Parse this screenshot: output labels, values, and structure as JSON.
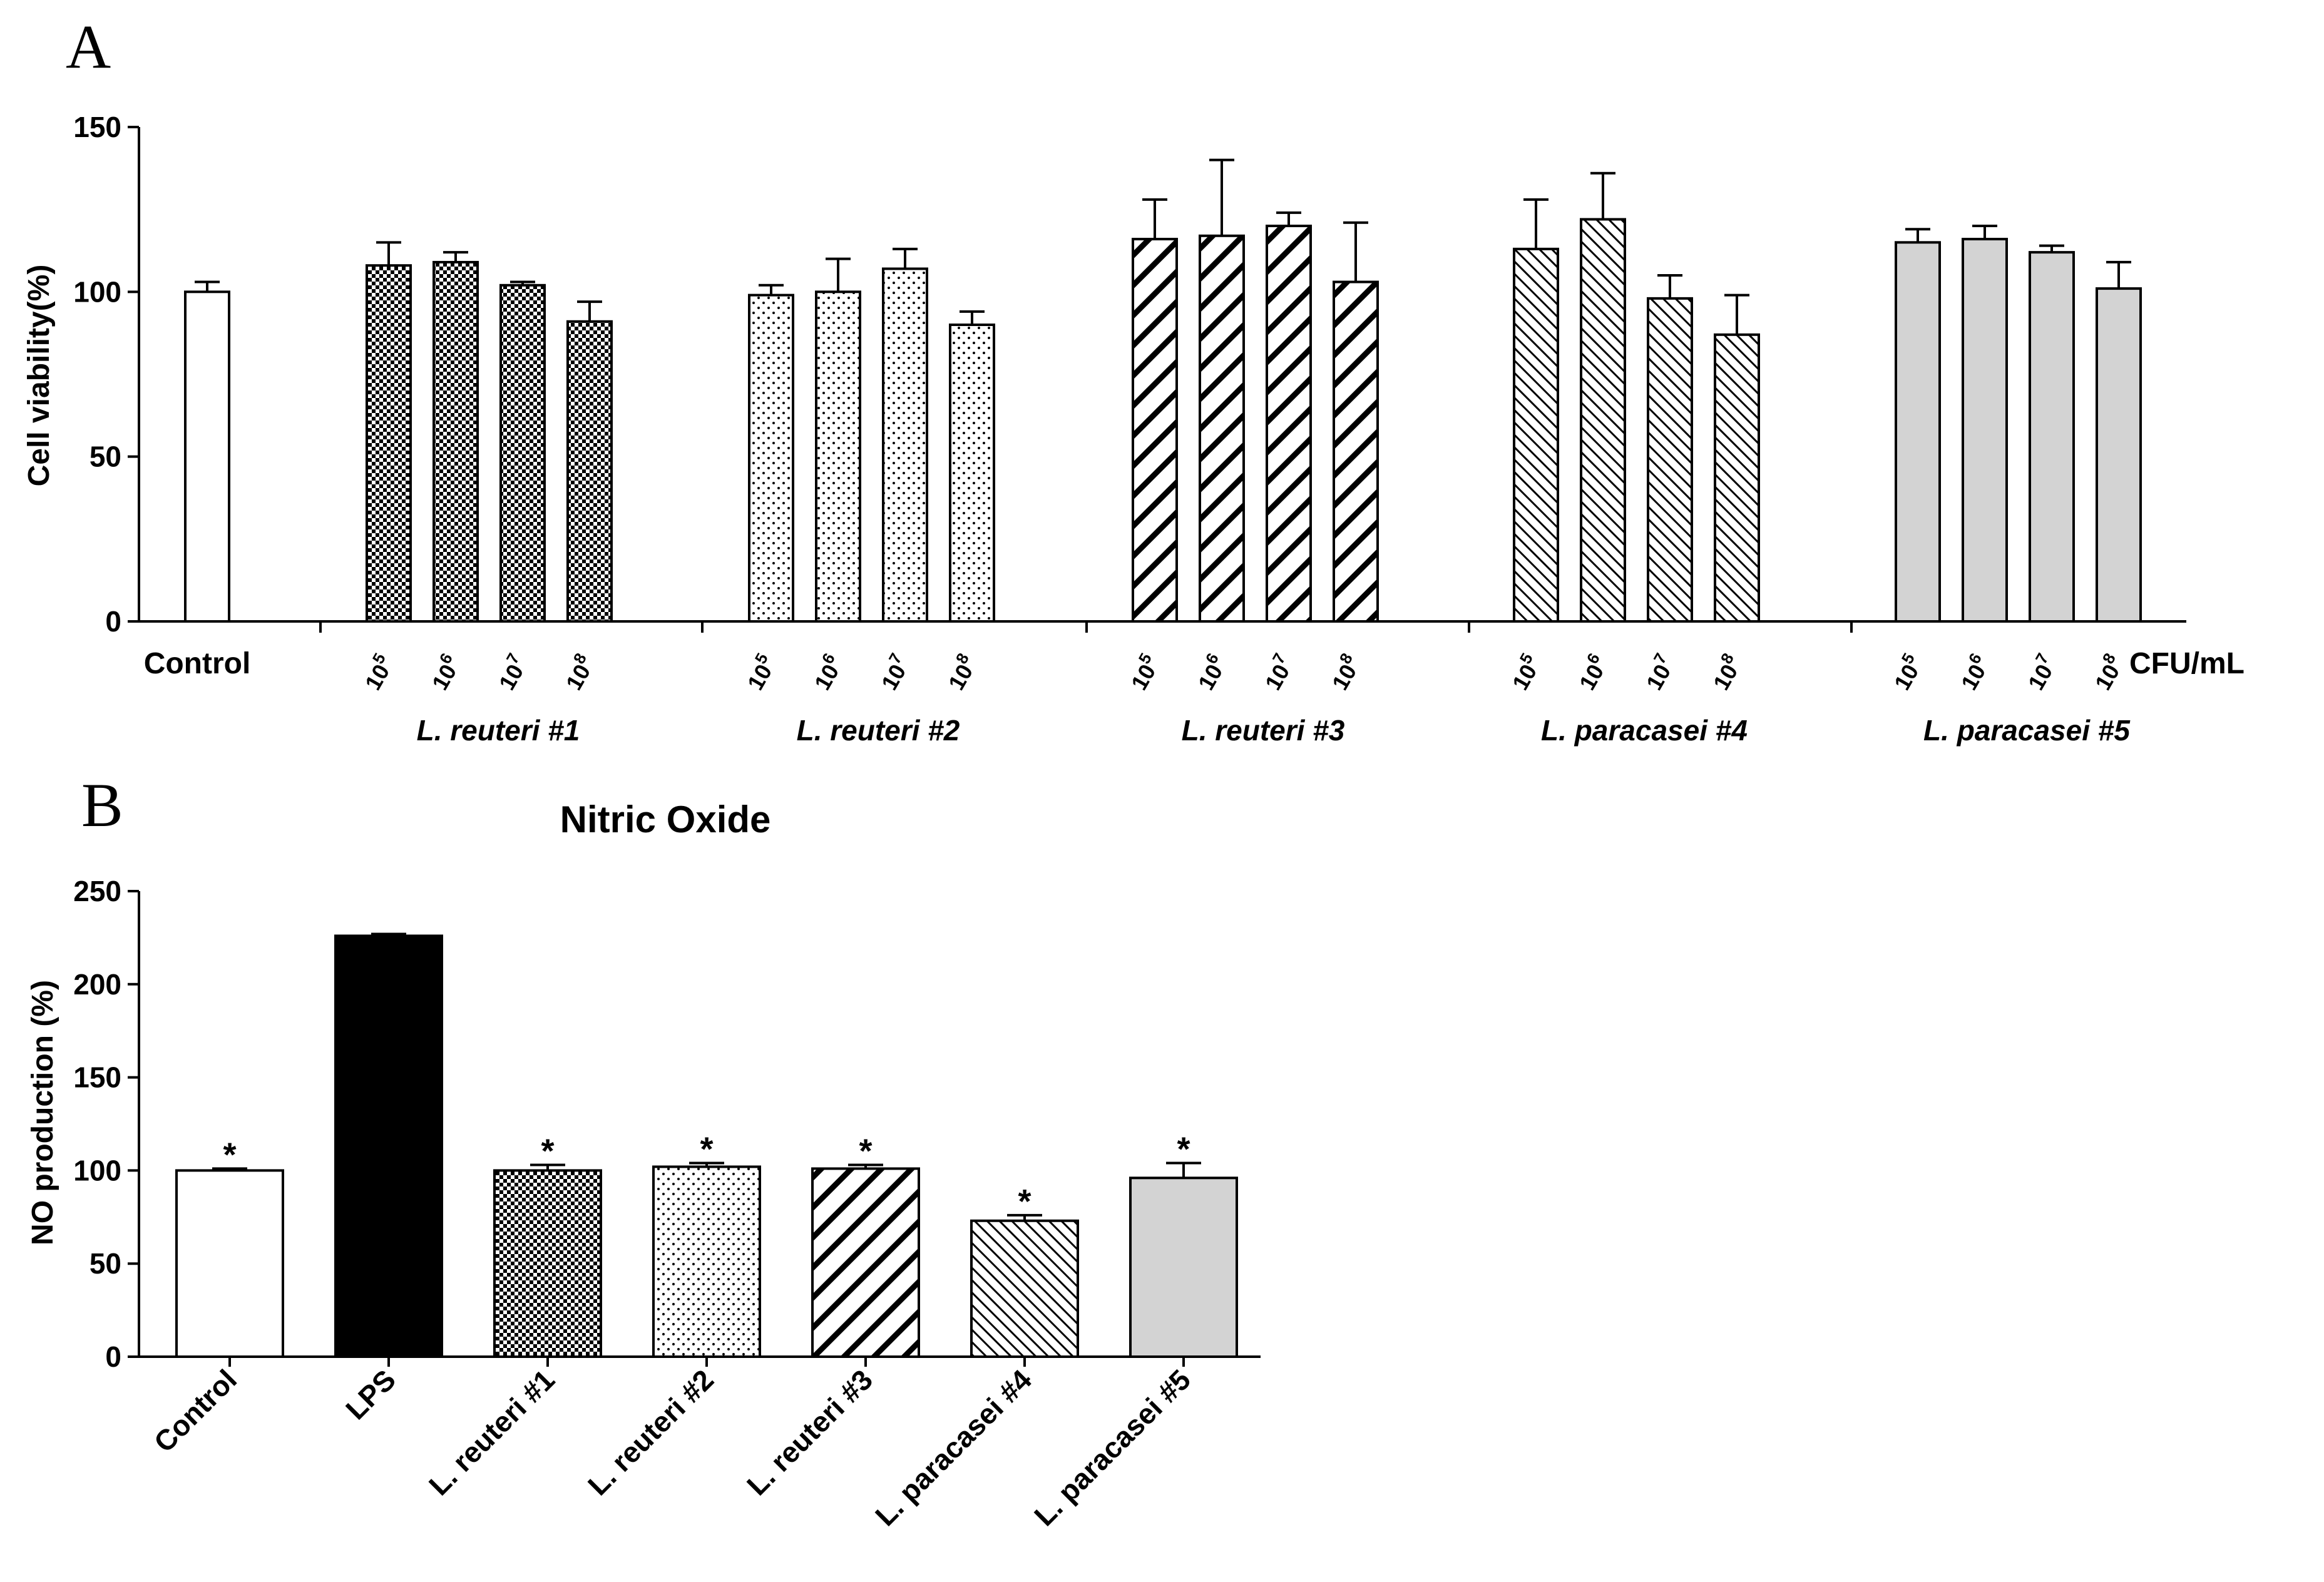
{
  "panels": {
    "a_letter": "A",
    "b_letter": "B"
  },
  "chart_data": [
    {
      "type": "bar",
      "title": "",
      "ylabel": "Cell viability(%)",
      "xlabel": "CFU/mL",
      "ylim": [
        0,
        150
      ],
      "yticks": [
        0,
        50,
        100,
        150
      ],
      "control": {
        "label": "Control",
        "value": 100,
        "error": 3
      },
      "concentrations": [
        {
          "base": "10",
          "exp": "5"
        },
        {
          "base": "10",
          "exp": "6"
        },
        {
          "base": "10",
          "exp": "7"
        },
        {
          "base": "10",
          "exp": "8"
        }
      ],
      "groups": [
        {
          "name": "L. reuteri #1",
          "pattern": "checker",
          "values": [
            108,
            109,
            102,
            91
          ],
          "errors": [
            7,
            3,
            1,
            6
          ]
        },
        {
          "name": "L. reuteri #2",
          "pattern": "dots",
          "values": [
            99,
            100,
            107,
            90
          ],
          "errors": [
            3,
            10,
            6,
            4
          ]
        },
        {
          "name": "L. reuteri #3",
          "pattern": "diag-thick",
          "values": [
            116,
            117,
            120,
            103
          ],
          "errors": [
            12,
            23,
            4,
            18
          ]
        },
        {
          "name": "L. paracasei #4",
          "pattern": "diag-thin",
          "values": [
            113,
            122,
            98,
            87
          ],
          "errors": [
            15,
            14,
            7,
            12
          ]
        },
        {
          "name": "L. paracasei #5",
          "pattern": "gray",
          "values": [
            115,
            116,
            112,
            101
          ],
          "errors": [
            4,
            4,
            2,
            8
          ]
        }
      ]
    },
    {
      "type": "bar",
      "title": "Nitric Oxide",
      "ylabel": "NO production (%)",
      "xlabel": "",
      "ylim": [
        0,
        250
      ],
      "yticks": [
        0,
        50,
        100,
        150,
        200,
        250
      ],
      "categories": [
        "Control",
        "LPS",
        "L. reuteri #1",
        "L. reuteri #2",
        "L. reuteri #3",
        "L. paracasei #4",
        "L. paracasei #5"
      ],
      "values": [
        100,
        226,
        100,
        102,
        101,
        73,
        96
      ],
      "errors": [
        1,
        1,
        3,
        2,
        2,
        3,
        8
      ],
      "patterns": [
        "white",
        "black",
        "checker",
        "dots",
        "diag-thick",
        "diag-thin",
        "gray"
      ],
      "significance": [
        "*",
        "",
        "*",
        "*",
        "*",
        "*",
        "*"
      ]
    }
  ]
}
